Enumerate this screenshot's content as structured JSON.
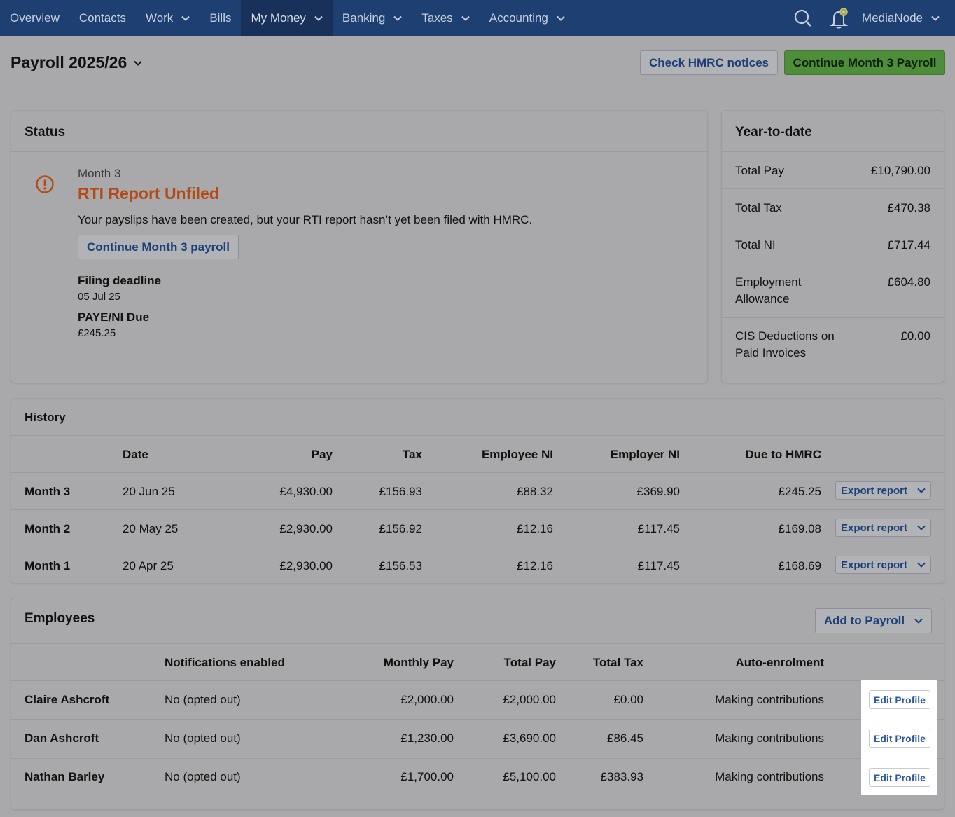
{
  "nav": {
    "items": [
      {
        "label": "Overview",
        "dropdown": false
      },
      {
        "label": "Contacts",
        "dropdown": false
      },
      {
        "label": "Work",
        "dropdown": true
      },
      {
        "label": "Bills",
        "dropdown": false
      },
      {
        "label": "My Money",
        "dropdown": true,
        "active": true
      },
      {
        "label": "Banking",
        "dropdown": true
      },
      {
        "label": "Taxes",
        "dropdown": true
      },
      {
        "label": "Accounting",
        "dropdown": true
      }
    ],
    "account_label": "MediaNode",
    "icons": [
      "search-icon",
      "bell-icon"
    ]
  },
  "header": {
    "title": "Payroll 2025/26",
    "check_notices_label": "Check HMRC notices",
    "continue_label": "Continue Month 3 Payroll"
  },
  "status": {
    "heading": "Status",
    "month": "Month 3",
    "title": "RTI Report Unfiled",
    "message": "Your payslips have been created, but your RTI report hasn’t yet been filed with HMRC.",
    "continue_button": "Continue Month 3 payroll",
    "deadline_label": "Filing deadline",
    "deadline_value": "05 Jul 25",
    "due_label": "PAYE/NI Due",
    "due_value": "£245.25",
    "alert_color": "#b34a15"
  },
  "ytd": {
    "heading": "Year-to-date",
    "rows": [
      {
        "label": "Total Pay",
        "value": "£10,790.00"
      },
      {
        "label": "Total Tax",
        "value": "£470.38"
      },
      {
        "label": "Total NI",
        "value": "£717.44"
      },
      {
        "label_line1": "Employment",
        "label_line2": "Allowance",
        "value": "£604.80"
      },
      {
        "label_line1": "CIS Deductions on",
        "label_line2": "Paid Invoices",
        "value": "£0.00"
      }
    ]
  },
  "history": {
    "heading": "History",
    "columns": [
      "Date",
      "Pay",
      "Tax",
      "Employee NI",
      "Employer NI",
      "Due to HMRC"
    ],
    "export_label": "Export report",
    "rows": [
      {
        "period": "Month 3",
        "date": "20 Jun 25",
        "pay": "£4,930.00",
        "tax": "£156.93",
        "employee_ni": "£88.32",
        "employer_ni": "£369.90",
        "due": "£245.25"
      },
      {
        "period": "Month 2",
        "date": "20 May 25",
        "pay": "£2,930.00",
        "tax": "£156.92",
        "employee_ni": "£12.16",
        "employer_ni": "£117.45",
        "due": "£169.08"
      },
      {
        "period": "Month 1",
        "date": "20 Apr 25",
        "pay": "£2,930.00",
        "tax": "£156.53",
        "employee_ni": "£12.16",
        "employer_ni": "£117.45",
        "due": "£168.69"
      }
    ]
  },
  "employees": {
    "heading": "Employees",
    "add_label": "Add to Payroll",
    "columns": [
      "Notifications enabled",
      "Monthly Pay",
      "Total Pay",
      "Total Tax",
      "Auto-enrolment"
    ],
    "edit_label": "Edit Profile",
    "rows": [
      {
        "name": "Claire Ashcroft",
        "notifications": "No (opted out)",
        "monthly": "£2,000.00",
        "total_pay": "£2,000.00",
        "total_tax": "£0.00",
        "auto": "Making contributions"
      },
      {
        "name": "Dan Ashcroft",
        "notifications": "No (opted out)",
        "monthly": "£1,230.00",
        "total_pay": "£3,690.00",
        "total_tax": "£86.45",
        "auto": "Making contributions"
      },
      {
        "name": "Nathan Barley",
        "notifications": "No (opted out)",
        "monthly": "£1,700.00",
        "total_pay": "£5,100.00",
        "total_tax": "£383.93",
        "auto": "Making contributions"
      }
    ]
  }
}
